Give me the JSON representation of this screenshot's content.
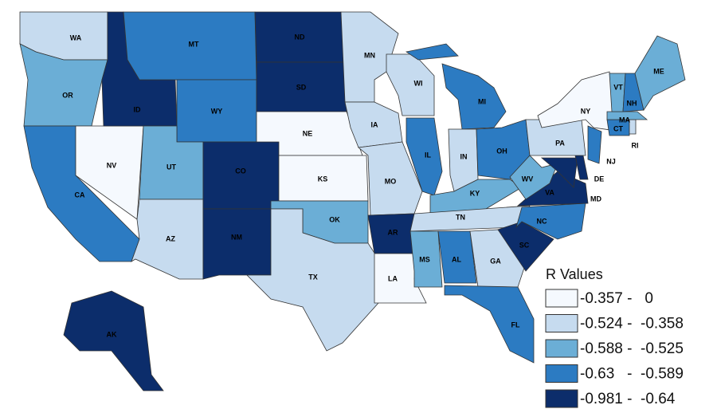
{
  "legend": {
    "title": "R Values",
    "items": [
      {
        "label": "-0.357 -   0",
        "color": "#f5f9fe"
      },
      {
        "label": "-0.524 -  -0.358",
        "color": "#c6dbef"
      },
      {
        "label": "-0.588 -  -0.525",
        "color": "#6baed6"
      },
      {
        "label": "-0.63   -  -0.589",
        "color": "#2c7bc2"
      },
      {
        "label": "-0.981 -  -0.64",
        "color": "#0c2d6b"
      }
    ]
  },
  "states": [
    {
      "label": "WA",
      "color": "#c6dbef"
    },
    {
      "label": "OR",
      "color": "#6baed6"
    },
    {
      "label": "CA",
      "color": "#2c7bc2"
    },
    {
      "label": "NV",
      "color": "#f5f9fe"
    },
    {
      "label": "ID",
      "color": "#0c2d6b"
    },
    {
      "label": "MT",
      "color": "#2c7bc2"
    },
    {
      "label": "WY",
      "color": "#2c7bc2"
    },
    {
      "label": "UT",
      "color": "#6baed6"
    },
    {
      "label": "AZ",
      "color": "#c6dbef"
    },
    {
      "label": "CO",
      "color": "#0c2d6b"
    },
    {
      "label": "NM",
      "color": "#0c2d6b"
    },
    {
      "label": "ND",
      "color": "#0c2d6b"
    },
    {
      "label": "SD",
      "color": "#0c2d6b"
    },
    {
      "label": "NE",
      "color": "#f5f9fe"
    },
    {
      "label": "KS",
      "color": "#f5f9fe"
    },
    {
      "label": "OK",
      "color": "#6baed6"
    },
    {
      "label": "TX",
      "color": "#c6dbef"
    },
    {
      "label": "MN",
      "color": "#c6dbef"
    },
    {
      "label": "IA",
      "color": "#c6dbef"
    },
    {
      "label": "MO",
      "color": "#c6dbef"
    },
    {
      "label": "AR",
      "color": "#0c2d6b"
    },
    {
      "label": "LA",
      "color": "#f5f9fe"
    },
    {
      "label": "WI",
      "color": "#c6dbef"
    },
    {
      "label": "IL",
      "color": "#2c7bc2"
    },
    {
      "label": "MI",
      "color": "#2c7bc2"
    },
    {
      "label": "IN",
      "color": "#c6dbef"
    },
    {
      "label": "OH",
      "color": "#2c7bc2"
    },
    {
      "label": "KY",
      "color": "#6baed6"
    },
    {
      "label": "TN",
      "color": "#c6dbef"
    },
    {
      "label": "MS",
      "color": "#6baed6"
    },
    {
      "label": "AL",
      "color": "#2c7bc2"
    },
    {
      "label": "GA",
      "color": "#c6dbef"
    },
    {
      "label": "FL",
      "color": "#2c7bc2"
    },
    {
      "label": "SC",
      "color": "#0c2d6b"
    },
    {
      "label": "NC",
      "color": "#2c7bc2"
    },
    {
      "label": "VA",
      "color": "#0c2d6b"
    },
    {
      "label": "WV",
      "color": "#6baed6"
    },
    {
      "label": "MD",
      "color": "#0c2d6b"
    },
    {
      "label": "DE",
      "color": "#0c2d6b"
    },
    {
      "label": "PA",
      "color": "#c6dbef"
    },
    {
      "label": "NY",
      "color": "#f5f9fe"
    },
    {
      "label": "NJ",
      "color": "#2c7bc2"
    },
    {
      "label": "CT",
      "color": "#2c7bc2"
    },
    {
      "label": "RI",
      "color": "#c6dbef"
    },
    {
      "label": "MA",
      "color": "#6baed6"
    },
    {
      "label": "VT",
      "color": "#6baed6"
    },
    {
      "label": "NH",
      "color": "#2c7bc2"
    },
    {
      "label": "ME",
      "color": "#6baed6"
    },
    {
      "label": "AK",
      "color": "#0c2d6b"
    }
  ]
}
